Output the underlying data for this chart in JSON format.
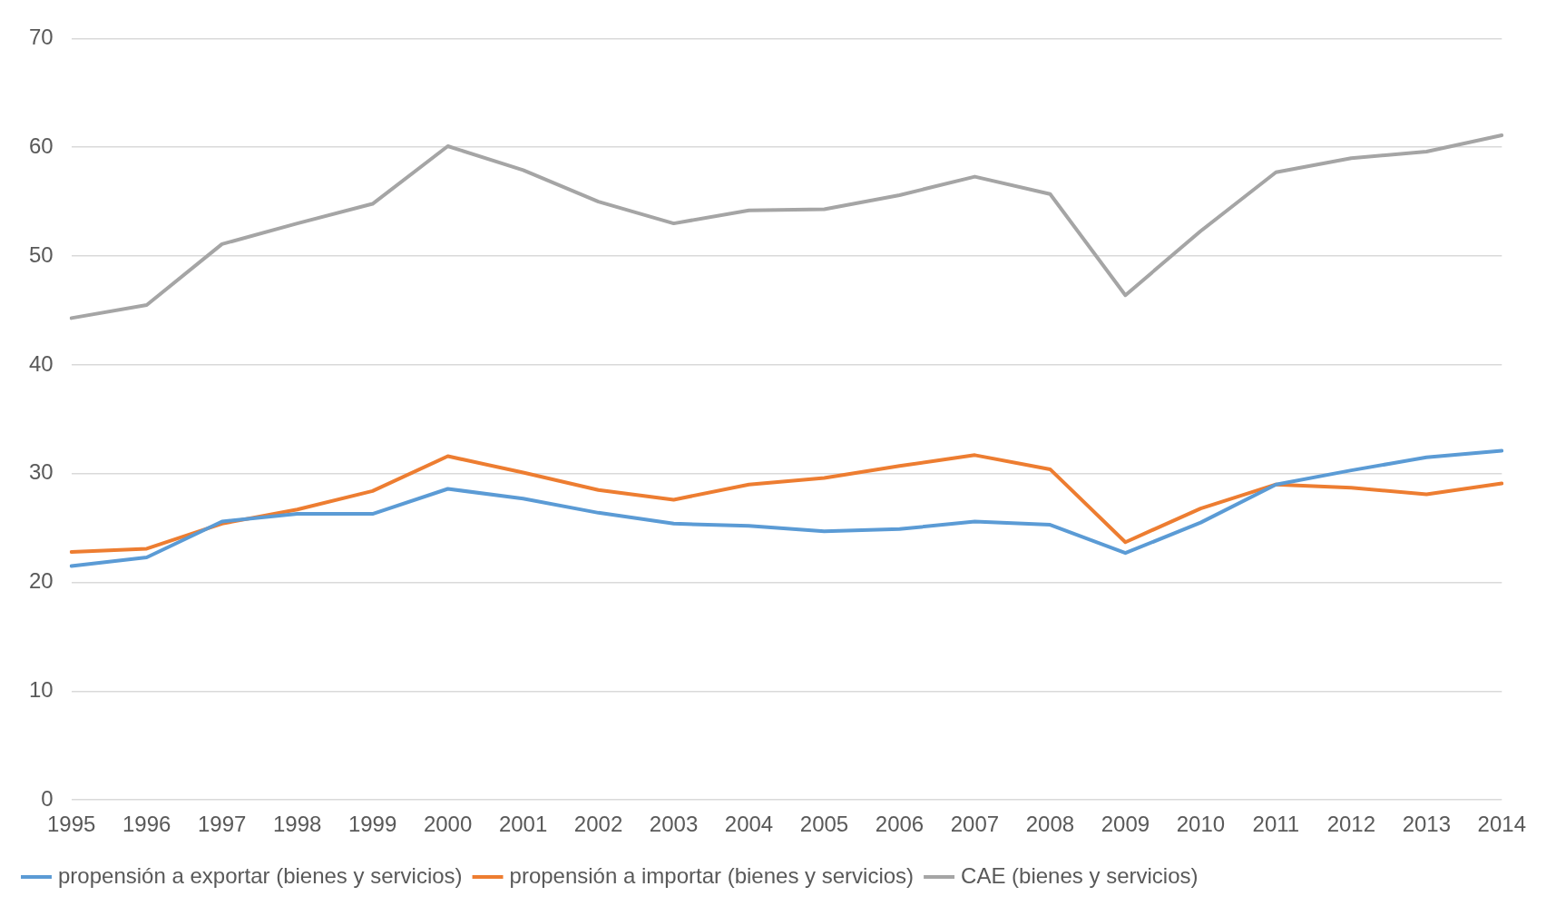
{
  "chart_data": {
    "type": "line",
    "categories": [
      "1995",
      "1996",
      "1997",
      "1998",
      "1999",
      "2000",
      "2001",
      "2002",
      "2003",
      "2004",
      "2005",
      "2006",
      "2007",
      "2008",
      "2009",
      "2010",
      "2011",
      "2012",
      "2013",
      "2014"
    ],
    "series": [
      {
        "name": "propensión a exportar (bienes y servicios)",
        "color": "#5b9bd5",
        "values": [
          21.5,
          22.3,
          25.6,
          26.3,
          26.3,
          28.6,
          27.7,
          26.4,
          25.4,
          25.2,
          24.7,
          24.9,
          25.6,
          25.3,
          22.7,
          25.5,
          29.0,
          30.3,
          31.5,
          32.1
        ]
      },
      {
        "name": "propensión a importar (bienes y servicios)",
        "color": "#ed7d31",
        "values": [
          22.8,
          23.1,
          25.4,
          26.7,
          28.4,
          31.6,
          30.1,
          28.5,
          27.6,
          29.0,
          29.6,
          30.7,
          31.7,
          30.4,
          23.7,
          26.8,
          29.0,
          28.7,
          28.1,
          29.1
        ]
      },
      {
        "name": "CAE (bienes y servicios)",
        "color": "#a5a5a5",
        "values": [
          44.3,
          45.5,
          51.1,
          53.0,
          54.8,
          60.1,
          57.9,
          55.0,
          53.0,
          54.2,
          54.3,
          55.6,
          57.3,
          55.7,
          46.4,
          52.3,
          57.7,
          59.0,
          59.6,
          61.1
        ]
      }
    ],
    "ylim": [
      0,
      70
    ],
    "yticks": [
      0,
      10,
      20,
      30,
      40,
      50,
      60,
      70
    ],
    "grid": "y",
    "legend": "bottom",
    "marker": "none",
    "line_style": "solid"
  }
}
